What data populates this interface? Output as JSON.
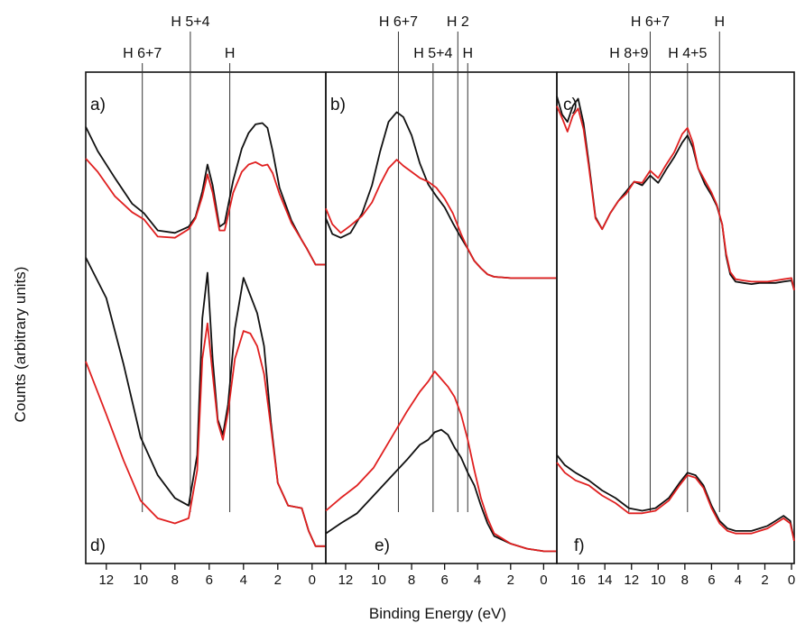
{
  "figure": {
    "xlabel": "Binding Energy (eV)",
    "ylabel": "Counts (arbitrary units)"
  },
  "colors": {
    "axes": "#111111",
    "series_black": "#111111",
    "series_red": "#e02020",
    "vline": "#333333"
  },
  "chart_data": [
    {
      "type": "line",
      "panels": [
        "a)",
        "d)"
      ],
      "xlim": [
        13.2,
        -0.8
      ],
      "x_reversed": true,
      "xticks": [
        12,
        10,
        8,
        6,
        4,
        2,
        0
      ],
      "xtick_labels": [
        "12",
        "10",
        "8",
        "6",
        "4",
        "2",
        "0"
      ],
      "reference_lines": [
        {
          "label": "H 6+7",
          "x": 9.9
        },
        {
          "label": "H 5+4",
          "x": 7.1
        },
        {
          "label": "H",
          "x": 4.8
        }
      ],
      "upper": {
        "label": "a)",
        "x": [
          13.2,
          12.5,
          11.5,
          10.5,
          9.8,
          9.0,
          8.0,
          7.2,
          6.8,
          6.4,
          6.1,
          5.8,
          5.4,
          5.1,
          4.6,
          4.1,
          3.7,
          3.3,
          2.9,
          2.6,
          2.3,
          1.9,
          1.2,
          0.6,
          0.3,
          -0.2,
          -0.8
        ],
        "series": [
          {
            "color": "black",
            "values": [
              14.0,
              12.0,
              9.8,
              7.7,
              6.9,
              5.5,
              5.3,
              5.8,
              6.6,
              8.7,
              10.9,
              9.2,
              5.8,
              6.1,
              9.6,
              12.2,
              13.5,
              14.2,
              14.3,
              13.9,
              12.0,
              9.0,
              6.3,
              4.7,
              4.0,
              2.7,
              2.7
            ]
          },
          {
            "color": "red",
            "values": [
              11.4,
              10.3,
              8.3,
              7.0,
              6.4,
              5.0,
              4.9,
              5.6,
              6.5,
              8.3,
              10.1,
              8.6,
              5.5,
              5.5,
              8.6,
              10.3,
              10.9,
              11.1,
              10.8,
              10.9,
              10.2,
              8.5,
              6.1,
              4.7,
              4.0,
              2.7,
              2.7
            ]
          }
        ]
      },
      "lower": {
        "label": "d)",
        "x": [
          13.2,
          12.0,
          11.0,
          10.0,
          9.0,
          8.0,
          7.2,
          6.7,
          6.4,
          6.1,
          5.8,
          5.5,
          5.2,
          4.9,
          4.5,
          4.0,
          3.6,
          3.2,
          2.8,
          2.4,
          2.0,
          1.4,
          0.6,
          0.2,
          -0.2,
          -0.8
        ],
        "series": [
          {
            "color": "black",
            "values": [
              11.8,
              10.2,
              7.6,
              4.7,
              3.2,
              2.3,
              2.0,
              4.0,
              9.4,
              11.2,
              7.8,
              5.4,
              4.8,
              6.0,
              9.0,
              11.0,
              10.3,
              9.6,
              8.3,
              5.3,
              2.9,
              2.0,
              1.9,
              1.0,
              0.4,
              0.4
            ]
          },
          {
            "color": "red",
            "values": [
              7.7,
              5.6,
              3.8,
              2.2,
              1.5,
              1.3,
              1.5,
              3.4,
              7.8,
              9.2,
              7.2,
              5.3,
              4.6,
              5.7,
              7.8,
              8.9,
              8.8,
              8.3,
              7.2,
              5.1,
              2.9,
              2.0,
              1.9,
              1.0,
              0.4,
              0.4
            ]
          }
        ]
      }
    },
    {
      "type": "line",
      "panels": [
        "b)",
        "e)"
      ],
      "xlim": [
        13.2,
        -0.8
      ],
      "x_reversed": true,
      "xticks": [
        12,
        10,
        8,
        6,
        4,
        2,
        0
      ],
      "xtick_labels": [
        "12",
        "10",
        "8",
        "6",
        "4",
        "2",
        "0"
      ],
      "reference_lines": [
        {
          "label": "H 6+7",
          "x": 8.8
        },
        {
          "label": "H 5+4",
          "x": 6.7
        },
        {
          "label": "H 2",
          "x": 5.2
        },
        {
          "label": "H",
          "x": 4.6
        }
      ],
      "upper": {
        "label": "b)",
        "x": [
          13.2,
          12.8,
          12.3,
          11.7,
          11.0,
          10.4,
          9.9,
          9.4,
          8.9,
          8.5,
          8.0,
          7.5,
          7.0,
          6.5,
          6.0,
          5.5,
          5.0,
          4.6,
          4.2,
          3.8,
          3.4,
          3.0,
          2.0,
          1.0,
          0.0,
          -0.8
        ],
        "series": [
          {
            "color": "black",
            "values": [
              6.5,
              5.2,
              4.9,
              5.3,
              6.9,
              9.2,
              12.0,
              14.4,
              15.2,
              14.8,
              13.3,
              11.0,
              9.3,
              8.3,
              7.4,
              6.1,
              4.9,
              4.0,
              3.0,
              2.4,
              1.9,
              1.7,
              1.6,
              1.6,
              1.6,
              1.6
            ]
          },
          {
            "color": "red",
            "values": [
              7.3,
              6.0,
              5.3,
              5.9,
              6.7,
              7.8,
              9.3,
              10.6,
              11.3,
              10.8,
              10.3,
              9.8,
              9.5,
              9.0,
              8.1,
              6.9,
              5.2,
              4.0,
              3.0,
              2.4,
              1.9,
              1.7,
              1.6,
              1.6,
              1.6,
              1.6
            ]
          }
        ]
      },
      "lower": {
        "label": "e)",
        "x": [
          13.2,
          12.3,
          11.3,
          10.3,
          9.3,
          8.3,
          7.5,
          7.0,
          6.6,
          6.2,
          5.8,
          5.4,
          5.0,
          4.6,
          4.2,
          3.8,
          3.4,
          3.0,
          2.0,
          1.0,
          0.0,
          -0.8
        ],
        "series": [
          {
            "color": "black",
            "values": [
              0.9,
              1.3,
              1.7,
              2.4,
              3.1,
              3.8,
              4.4,
              4.6,
              4.9,
              5.0,
              4.8,
              4.3,
              3.9,
              3.3,
              2.8,
              2.0,
              1.3,
              0.8,
              0.5,
              0.3,
              0.2,
              0.2
            ]
          },
          {
            "color": "red",
            "values": [
              1.8,
              2.3,
              2.8,
              3.5,
              4.6,
              5.7,
              6.5,
              6.9,
              7.3,
              7.0,
              6.7,
              6.3,
              5.6,
              4.6,
              3.4,
              2.3,
              1.5,
              0.9,
              0.5,
              0.3,
              0.2,
              0.2
            ]
          }
        ]
      }
    },
    {
      "type": "line",
      "panels": [
        "c)",
        "f)"
      ],
      "xlim": [
        17.6,
        -0.2
      ],
      "x_reversed": true,
      "xticks": [
        16,
        14,
        12,
        10,
        8,
        6,
        4,
        2,
        0
      ],
      "xtick_labels": [
        "16",
        "14",
        "12",
        "10",
        "8",
        "6",
        "4",
        "2",
        "0"
      ],
      "reference_lines": [
        {
          "label": "H 8+9",
          "x": 12.2
        },
        {
          "label": "H 6+7",
          "x": 10.6
        },
        {
          "label": "H 4+5",
          "x": 7.8
        },
        {
          "label": "H",
          "x": 5.4
        }
      ],
      "upper": {
        "label": "c)",
        "x": [
          17.6,
          17.2,
          16.8,
          16.4,
          16.0,
          15.6,
          15.2,
          14.7,
          14.2,
          13.6,
          13.0,
          12.4,
          11.8,
          11.2,
          10.6,
          10.0,
          9.4,
          8.8,
          8.2,
          7.8,
          7.4,
          7.0,
          6.5,
          6.0,
          5.6,
          5.2,
          4.9,
          4.6,
          4.2,
          3.6,
          3.0,
          2.4,
          1.8,
          1.2,
          0.6,
          0.0,
          -0.2
        ],
        "series": [
          {
            "color": "black",
            "values": [
              16.5,
              15.0,
              14.4,
              15.7,
              16.3,
              14.3,
              11.0,
              6.6,
              5.6,
              6.9,
              7.9,
              8.7,
              9.5,
              9.2,
              10.0,
              9.4,
              10.5,
              11.5,
              12.7,
              13.3,
              12.3,
              10.6,
              9.3,
              8.4,
              7.5,
              6.0,
              3.4,
              1.9,
              1.3,
              1.2,
              1.1,
              1.2,
              1.2,
              1.2,
              1.3,
              1.4,
              0.6
            ]
          },
          {
            "color": "red",
            "values": [
              15.7,
              14.7,
              13.6,
              14.9,
              15.5,
              13.8,
              10.7,
              6.5,
              5.6,
              6.9,
              7.9,
              8.5,
              9.5,
              9.4,
              10.4,
              9.8,
              10.9,
              11.9,
              13.4,
              13.9,
              12.7,
              10.6,
              9.6,
              8.6,
              7.6,
              6.0,
              3.6,
              2.1,
              1.5,
              1.4,
              1.3,
              1.3,
              1.3,
              1.4,
              1.5,
              1.6,
              0.6
            ]
          }
        ]
      },
      "lower": {
        "label": "f)",
        "x": [
          17.6,
          17.0,
          16.2,
          15.2,
          14.2,
          13.2,
          12.2,
          11.2,
          10.2,
          9.2,
          8.4,
          7.8,
          7.2,
          6.6,
          6.0,
          5.4,
          4.8,
          4.2,
          3.6,
          3.0,
          2.4,
          1.8,
          1.2,
          0.6,
          0.1,
          -0.2
        ],
        "series": [
          {
            "color": "black",
            "values": [
              4.0,
              3.6,
              3.3,
              3.0,
              2.6,
              2.3,
              1.9,
              1.8,
              1.9,
              2.3,
              2.9,
              3.3,
              3.2,
              2.8,
              2.0,
              1.4,
              1.1,
              1.0,
              1.0,
              1.0,
              1.1,
              1.2,
              1.4,
              1.6,
              1.4,
              0.6
            ]
          },
          {
            "color": "red",
            "values": [
              3.7,
              3.3,
              3.0,
              2.8,
              2.4,
              2.1,
              1.7,
              1.7,
              1.8,
              2.2,
              2.8,
              3.2,
              3.1,
              2.7,
              1.9,
              1.3,
              1.0,
              0.9,
              0.9,
              0.9,
              1.0,
              1.1,
              1.3,
              1.5,
              1.3,
              0.6
            ]
          }
        ]
      }
    }
  ]
}
